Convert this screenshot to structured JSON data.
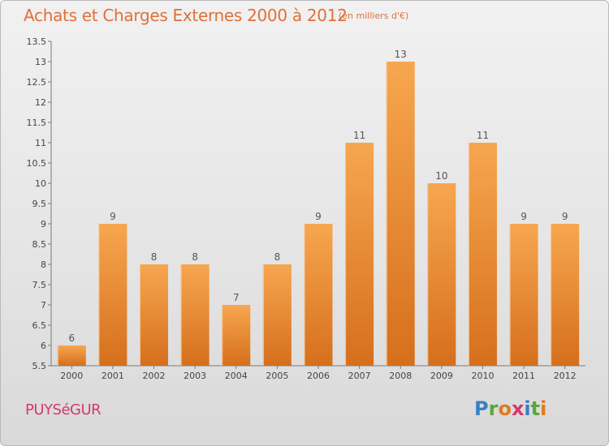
{
  "title": "Achats et Charges Externes 2000 à 2012",
  "subtitle": "(en milliers d'€)",
  "location": "PUYSéGUR",
  "brand": {
    "letters": [
      "P",
      "r",
      "o",
      "x",
      "i",
      "t",
      "i"
    ],
    "colors": [
      "#3a7fc4",
      "#5aa63c",
      "#e07a1f",
      "#d23a6e",
      "#3a7fc4",
      "#5aa63c",
      "#e07a1f"
    ]
  },
  "colors": {
    "bar_top": "#f7a650",
    "bar_bottom": "#d66f1c",
    "title": "#e0703a",
    "place": "#d23a6e"
  },
  "chart_data": {
    "type": "bar",
    "categories": [
      "2000",
      "2001",
      "2002",
      "2003",
      "2004",
      "2005",
      "2006",
      "2007",
      "2008",
      "2009",
      "2010",
      "2011",
      "2012"
    ],
    "values": [
      6,
      9,
      8,
      8,
      7,
      8,
      9,
      11,
      13,
      10,
      11,
      9,
      9
    ],
    "data_labels": [
      "6",
      "9",
      "8",
      "8",
      "7",
      "8",
      "9",
      "11",
      "13",
      "10",
      "11",
      "9",
      "9"
    ],
    "ylim": [
      5.5,
      13.5
    ],
    "yticks": [
      "5.5",
      "6",
      "6.5",
      "7",
      "7.5",
      "8",
      "8.5",
      "9",
      "9.5",
      "10",
      "10.5",
      "11",
      "11.5",
      "12",
      "12.5",
      "13",
      "13.5"
    ],
    "xlabel": "",
    "ylabel": "",
    "grid": false
  }
}
